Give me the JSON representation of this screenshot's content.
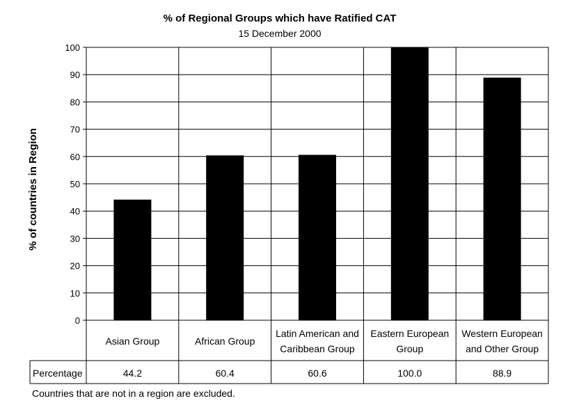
{
  "chart_data": {
    "type": "bar",
    "title": "% of Regional Groups which have Ratified CAT",
    "subtitle": "15 December 2000",
    "ylabel": "% of countries in Region",
    "ylim": [
      0,
      100
    ],
    "yticks": [
      0,
      10,
      20,
      30,
      40,
      50,
      60,
      70,
      80,
      90,
      100
    ],
    "grid": true,
    "categories": [
      [
        "Asian Group"
      ],
      [
        "African Group"
      ],
      [
        "Latin American and",
        "Caribbean Group"
      ],
      [
        "Eastern European",
        "Group"
      ],
      [
        "Western European",
        "and Other Group"
      ]
    ],
    "series": [
      {
        "name": "Percentage",
        "values": [
          44.2,
          60.4,
          60.6,
          100.0,
          88.9
        ],
        "labels": [
          "44.2",
          "60.4",
          "60.6",
          "100.0",
          "88.9"
        ],
        "color": "#000000"
      }
    ],
    "data_table_row_label": "Percentage",
    "footnote": "Countries that are not in a region are excluded."
  }
}
